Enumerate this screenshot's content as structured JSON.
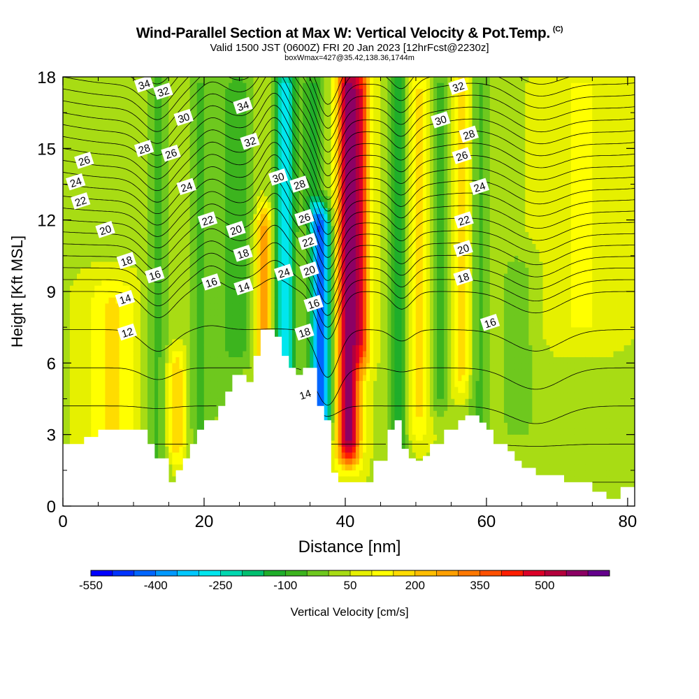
{
  "title": {
    "main": "Wind-Parallel Section at Max W: Vertical Velocity & Pot.Temp.",
    "copyright": "(C)",
    "line2": "Valid 1500 JST (0600Z) FRI 20 Jan 2023 [12hrFcst@2230z]",
    "line3": "boxWmax=427@35.42,138.36,1744m"
  },
  "chart_data": {
    "type": "heatmap",
    "xlabel": "Distance [nm]",
    "ylabel": "Height [Kft MSL]",
    "xlim": [
      0,
      81
    ],
    "ylim": [
      0,
      18
    ],
    "x_ticks": [
      "0",
      "20",
      "40",
      "60",
      "80"
    ],
    "y_ticks": [
      "0",
      "3",
      "6",
      "9",
      "12",
      "15",
      "18"
    ],
    "colorbar": {
      "label": "Vertical Velocity [cm/s]",
      "tick_labels": [
        "-550",
        "-400",
        "-250",
        "-100",
        "50",
        "200",
        "350",
        "500"
      ],
      "levels": [
        -550,
        -500,
        -450,
        -400,
        -350,
        -300,
        -250,
        -200,
        -150,
        -100,
        -50,
        0,
        50,
        100,
        150,
        200,
        250,
        300,
        350,
        400,
        450,
        500,
        550,
        600
      ],
      "colors": [
        "#0000ff",
        "#0033ff",
        "#0066ff",
        "#0099ff",
        "#00c8ff",
        "#00e6ee",
        "#00d8b0",
        "#00c070",
        "#1fae2a",
        "#3cb41e",
        "#6ec81e",
        "#a8dc14",
        "#e6f000",
        "#ffff00",
        "#ffdc00",
        "#ffbe00",
        "#ffa000",
        "#ff7800",
        "#ff5000",
        "#ff1e00",
        "#dc0028",
        "#b4003c",
        "#8c0064",
        "#64008c"
      ]
    },
    "velocity_features": [
      {
        "x": 7,
        "w": 3.5,
        "zmin": 2,
        "zmax": 9,
        "value": 110
      },
      {
        "x": 13.5,
        "w": 1.8,
        "zmin": 1,
        "zmax": 18,
        "value": -110
      },
      {
        "x": 16,
        "w": 1.5,
        "zmin": 2,
        "zmax": 6,
        "value": 160
      },
      {
        "x": 19.5,
        "w": 1.8,
        "zmin": 2,
        "zmax": 18,
        "value": -100
      },
      {
        "x": 23,
        "w": 2.0,
        "zmin": 4,
        "zmax": 18,
        "value": -70
      },
      {
        "x": 25.5,
        "w": 2.0,
        "zmin": 6,
        "zmax": 18,
        "value": -90
      },
      {
        "x": 28.5,
        "w": 1.1,
        "zmin": 6,
        "zmax": 12,
        "value": 250
      },
      {
        "x": 31.5,
        "w": 1.5,
        "zmin": 5,
        "zmax": 18,
        "value": -330
      },
      {
        "x": 36.5,
        "w": 1.5,
        "zmin": 3,
        "zmax": 12,
        "value": -480
      },
      {
        "x": 35.5,
        "w": 1.6,
        "zmin": 12,
        "zmax": 18,
        "value": -160
      },
      {
        "x": 40.5,
        "w": 1.6,
        "zmin": 2,
        "zmax": 18,
        "value": 520
      },
      {
        "x": 42.5,
        "w": 1.2,
        "zmin": 6,
        "zmax": 18,
        "value": 260
      },
      {
        "x": 47.5,
        "w": 1.2,
        "zmin": 2,
        "zmax": 18,
        "value": -180
      },
      {
        "x": 50.5,
        "w": 1.5,
        "zmin": 3,
        "zmax": 18,
        "value": 110
      },
      {
        "x": 53.5,
        "w": 1.3,
        "zmin": 4,
        "zmax": 18,
        "value": -110
      },
      {
        "x": 56.5,
        "w": 1.5,
        "zmin": 5,
        "zmax": 18,
        "value": 140
      },
      {
        "x": 59,
        "w": 1.6,
        "zmin": 3,
        "zmax": 18,
        "value": -110
      },
      {
        "x": 64.5,
        "w": 2.5,
        "zmin": 3,
        "zmax": 10,
        "value": -80
      },
      {
        "x": 73.5,
        "w": 5,
        "zmin": 7,
        "zmax": 18,
        "value": 60
      }
    ],
    "terrain_kft": [
      [
        0,
        2.6
      ],
      [
        3,
        2.6
      ],
      [
        3,
        2.9
      ],
      [
        5,
        2.9
      ],
      [
        5,
        3.2
      ],
      [
        12,
        3.2
      ],
      [
        12,
        2.6
      ],
      [
        13,
        2.6
      ],
      [
        13,
        2.0
      ],
      [
        15,
        2.0
      ],
      [
        15,
        1.0
      ],
      [
        16,
        1.0
      ],
      [
        16,
        1.5
      ],
      [
        17,
        1.5
      ],
      [
        17,
        2.0
      ],
      [
        18,
        2.0
      ],
      [
        18,
        2.6
      ],
      [
        19,
        2.6
      ],
      [
        19,
        3.2
      ],
      [
        20,
        3.2
      ],
      [
        20,
        3.6
      ],
      [
        22,
        3.6
      ],
      [
        22,
        4.2
      ],
      [
        23,
        4.2
      ],
      [
        23,
        4.8
      ],
      [
        24,
        4.8
      ],
      [
        24,
        5.5
      ],
      [
        26,
        5.5
      ],
      [
        26,
        5.2
      ],
      [
        27,
        5.2
      ],
      [
        27,
        6.3
      ],
      [
        28,
        6.3
      ],
      [
        28,
        7.4
      ],
      [
        30,
        7.4
      ],
      [
        30,
        7.1
      ],
      [
        31,
        7.1
      ],
      [
        31,
        6.3
      ],
      [
        32,
        6.3
      ],
      [
        32,
        5.8
      ],
      [
        33,
        5.8
      ],
      [
        33,
        5.5
      ],
      [
        34,
        5.5
      ],
      [
        34,
        5.8
      ],
      [
        36,
        5.8
      ],
      [
        36,
        4.2
      ],
      [
        37,
        4.2
      ],
      [
        37,
        3.6
      ],
      [
        38,
        3.6
      ],
      [
        38,
        1.4
      ],
      [
        39,
        1.4
      ],
      [
        39,
        1.0
      ],
      [
        44,
        1.0
      ],
      [
        44,
        1.9
      ],
      [
        46,
        1.9
      ],
      [
        46,
        3.2
      ],
      [
        47,
        3.2
      ],
      [
        47,
        3.6
      ],
      [
        48,
        3.6
      ],
      [
        48,
        2.4
      ],
      [
        49,
        2.4
      ],
      [
        49,
        2.0
      ],
      [
        50,
        2.0
      ],
      [
        50,
        1.9
      ],
      [
        51,
        1.9
      ],
      [
        51,
        2.1
      ],
      [
        52,
        2.1
      ],
      [
        52,
        2.6
      ],
      [
        54,
        2.6
      ],
      [
        54,
        3.2
      ],
      [
        56,
        3.2
      ],
      [
        56,
        3.6
      ],
      [
        57,
        3.6
      ],
      [
        57,
        3.8
      ],
      [
        59,
        3.8
      ],
      [
        59,
        3.5
      ],
      [
        60,
        3.5
      ],
      [
        60,
        3.2
      ],
      [
        61,
        3.2
      ],
      [
        61,
        2.6
      ],
      [
        63,
        2.6
      ],
      [
        63,
        2.3
      ],
      [
        64,
        2.3
      ],
      [
        64,
        1.9
      ],
      [
        65,
        1.9
      ],
      [
        65,
        1.6
      ],
      [
        67,
        1.6
      ],
      [
        67,
        1.3
      ],
      [
        71,
        1.3
      ],
      [
        71,
        1.0
      ],
      [
        75,
        1.0
      ],
      [
        75,
        0.6
      ],
      [
        77,
        0.6
      ],
      [
        77,
        0.3
      ],
      [
        79,
        0.3
      ],
      [
        79,
        0.8
      ],
      [
        81,
        0.8
      ]
    ],
    "theta_contours": {
      "levels_C": [
        12,
        14,
        16,
        18,
        20,
        22,
        24,
        26,
        28,
        30,
        32,
        34
      ],
      "labels": [
        {
          "text": "34",
          "x": 11.5,
          "y": 17.7
        },
        {
          "text": "32",
          "x": 14.2,
          "y": 17.4
        },
        {
          "text": "30",
          "x": 17.1,
          "y": 16.3
        },
        {
          "text": "28",
          "x": 11.5,
          "y": 15.0
        },
        {
          "text": "26",
          "x": 15.3,
          "y": 14.8
        },
        {
          "text": "26",
          "x": 3.0,
          "y": 14.5
        },
        {
          "text": "24",
          "x": 1.8,
          "y": 13.6
        },
        {
          "text": "24",
          "x": 17.5,
          "y": 13.4
        },
        {
          "text": "22",
          "x": 2.5,
          "y": 12.8
        },
        {
          "text": "22",
          "x": 20.5,
          "y": 12.0
        },
        {
          "text": "20",
          "x": 6.0,
          "y": 11.6
        },
        {
          "text": "20",
          "x": 24.5,
          "y": 11.6
        },
        {
          "text": "18",
          "x": 9.0,
          "y": 10.3
        },
        {
          "text": "18",
          "x": 25.5,
          "y": 10.6
        },
        {
          "text": "16",
          "x": 13.0,
          "y": 9.7
        },
        {
          "text": "16",
          "x": 21.0,
          "y": 9.4
        },
        {
          "text": "14",
          "x": 8.8,
          "y": 8.7
        },
        {
          "text": "14",
          "x": 25.6,
          "y": 9.2
        },
        {
          "text": "12",
          "x": 9.1,
          "y": 7.3
        },
        {
          "text": "34",
          "x": 25.5,
          "y": 16.8
        },
        {
          "text": "32",
          "x": 26.5,
          "y": 15.3
        },
        {
          "text": "30",
          "x": 30.5,
          "y": 13.8
        },
        {
          "text": "24",
          "x": 31.3,
          "y": 9.8
        },
        {
          "text": "28",
          "x": 33.5,
          "y": 13.5
        },
        {
          "text": "26",
          "x": 34.2,
          "y": 12.1
        },
        {
          "text": "22",
          "x": 34.7,
          "y": 11.1
        },
        {
          "text": "20",
          "x": 34.9,
          "y": 9.9
        },
        {
          "text": "16",
          "x": 35.5,
          "y": 8.5
        },
        {
          "text": "18",
          "x": 34.2,
          "y": 7.3
        },
        {
          "text": "14",
          "x": 34.3,
          "y": 4.7
        },
        {
          "text": "32",
          "x": 56.0,
          "y": 17.6
        },
        {
          "text": "30",
          "x": 53.5,
          "y": 16.2
        },
        {
          "text": "28",
          "x": 57.5,
          "y": 15.6
        },
        {
          "text": "26",
          "x": 56.5,
          "y": 14.7
        },
        {
          "text": "24",
          "x": 59.0,
          "y": 13.4
        },
        {
          "text": "22",
          "x": 56.8,
          "y": 12.0
        },
        {
          "text": "20",
          "x": 56.7,
          "y": 10.8
        },
        {
          "text": "18",
          "x": 56.7,
          "y": 9.6
        },
        {
          "text": "16",
          "x": 60.5,
          "y": 7.7
        }
      ]
    }
  }
}
